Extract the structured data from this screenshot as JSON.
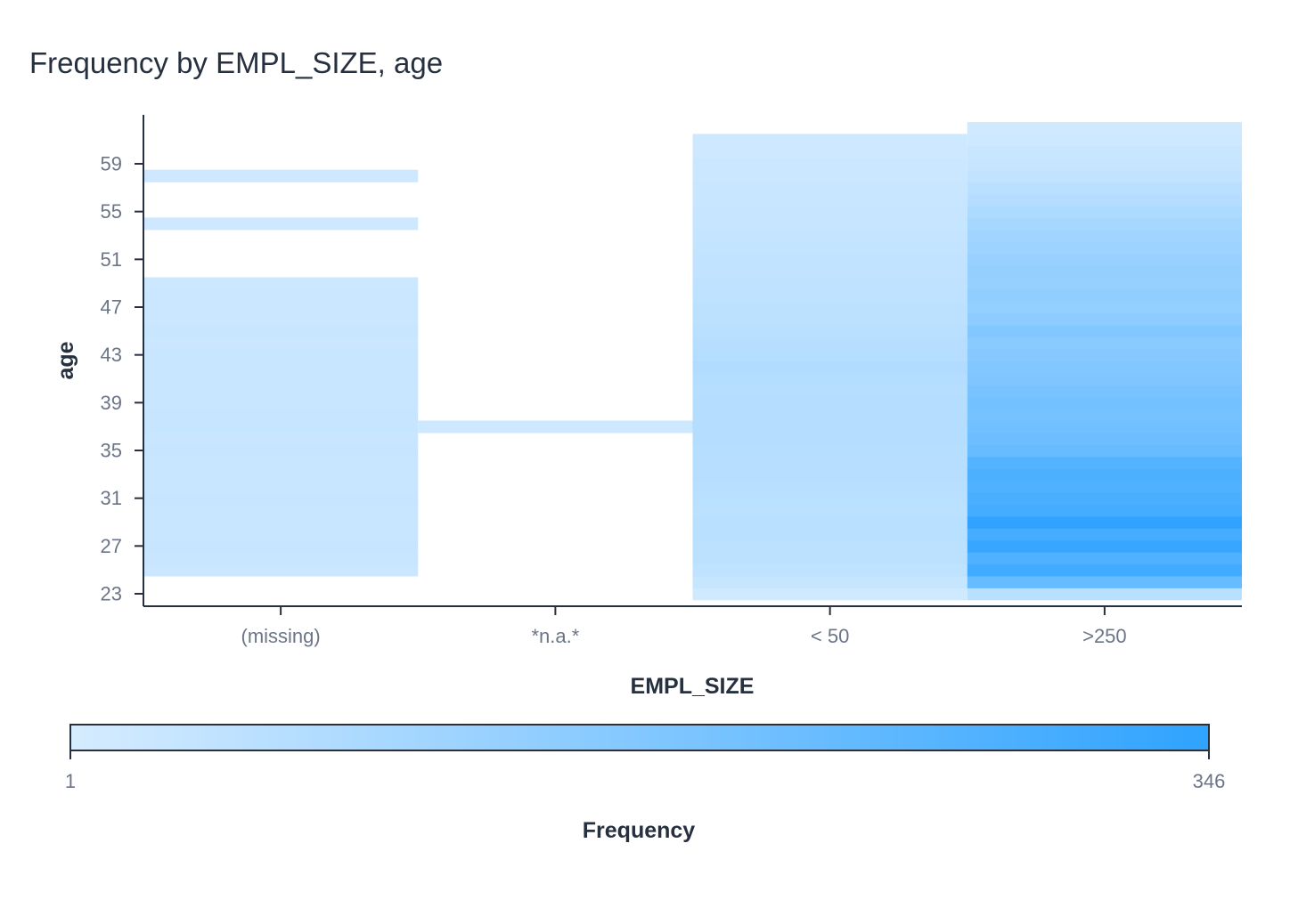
{
  "chart_data": {
    "type": "heatmap",
    "title": "Frequency by EMPL_SIZE, age",
    "xlabel": "EMPL_SIZE",
    "ylabel": "age",
    "categories": [
      "(missing)",
      "*n.a.*",
      "< 50",
      ">250"
    ],
    "y_ticks": [
      23,
      27,
      31,
      35,
      39,
      43,
      47,
      51,
      55,
      59
    ],
    "ylim": [
      22.5,
      63
    ],
    "colorbar": {
      "label": "Frequency",
      "min": 1,
      "max": 346,
      "min_label": "1",
      "max_label": "346",
      "color_min": "#d6ecff",
      "color_max": "#2fa3ff"
    },
    "cells": [
      {
        "x": "(missing)",
        "y": 58,
        "value": 20
      },
      {
        "x": "(missing)",
        "y": 54,
        "value": 20
      },
      {
        "x": "(missing)",
        "y": 25,
        "value": 25
      },
      {
        "x": "(missing)",
        "y": 26,
        "value": 30
      },
      {
        "x": "(missing)",
        "y": 27,
        "value": 32
      },
      {
        "x": "(missing)",
        "y": 28,
        "value": 30
      },
      {
        "x": "(missing)",
        "y": 29,
        "value": 28
      },
      {
        "x": "(missing)",
        "y": 30,
        "value": 30
      },
      {
        "x": "(missing)",
        "y": 31,
        "value": 32
      },
      {
        "x": "(missing)",
        "y": 32,
        "value": 30
      },
      {
        "x": "(missing)",
        "y": 33,
        "value": 28
      },
      {
        "x": "(missing)",
        "y": 34,
        "value": 30
      },
      {
        "x": "(missing)",
        "y": 35,
        "value": 32
      },
      {
        "x": "(missing)",
        "y": 36,
        "value": 30
      },
      {
        "x": "(missing)",
        "y": 37,
        "value": 35
      },
      {
        "x": "(missing)",
        "y": 38,
        "value": 32
      },
      {
        "x": "(missing)",
        "y": 39,
        "value": 30
      },
      {
        "x": "(missing)",
        "y": 40,
        "value": 28
      },
      {
        "x": "(missing)",
        "y": 41,
        "value": 30
      },
      {
        "x": "(missing)",
        "y": 42,
        "value": 28
      },
      {
        "x": "(missing)",
        "y": 43,
        "value": 30
      },
      {
        "x": "(missing)",
        "y": 44,
        "value": 26
      },
      {
        "x": "(missing)",
        "y": 45,
        "value": 28
      },
      {
        "x": "(missing)",
        "y": 46,
        "value": 26
      },
      {
        "x": "(missing)",
        "y": 47,
        "value": 24
      },
      {
        "x": "(missing)",
        "y": 48,
        "value": 24
      },
      {
        "x": "(missing)",
        "y": 49,
        "value": 22
      },
      {
        "x": "*n.a.*",
        "y": 37,
        "value": 18
      },
      {
        "x": "< 50",
        "y": 23,
        "value": 15
      },
      {
        "x": "< 50",
        "y": 24,
        "value": 35
      },
      {
        "x": "< 50",
        "y": 25,
        "value": 50
      },
      {
        "x": "< 50",
        "y": 26,
        "value": 55
      },
      {
        "x": "< 50",
        "y": 27,
        "value": 55
      },
      {
        "x": "< 50",
        "y": 28,
        "value": 60
      },
      {
        "x": "< 50",
        "y": 29,
        "value": 60
      },
      {
        "x": "< 50",
        "y": 30,
        "value": 55
      },
      {
        "x": "< 50",
        "y": 31,
        "value": 60
      },
      {
        "x": "< 50",
        "y": 32,
        "value": 62
      },
      {
        "x": "< 50",
        "y": 33,
        "value": 65
      },
      {
        "x": "< 50",
        "y": 34,
        "value": 65
      },
      {
        "x": "< 50",
        "y": 35,
        "value": 68
      },
      {
        "x": "< 50",
        "y": 36,
        "value": 70
      },
      {
        "x": "< 50",
        "y": 37,
        "value": 72
      },
      {
        "x": "< 50",
        "y": 38,
        "value": 70
      },
      {
        "x": "< 50",
        "y": 39,
        "value": 70
      },
      {
        "x": "< 50",
        "y": 40,
        "value": 68
      },
      {
        "x": "< 50",
        "y": 41,
        "value": 70
      },
      {
        "x": "< 50",
        "y": 42,
        "value": 75
      },
      {
        "x": "< 50",
        "y": 43,
        "value": 72
      },
      {
        "x": "< 50",
        "y": 44,
        "value": 65
      },
      {
        "x": "< 50",
        "y": 45,
        "value": 60
      },
      {
        "x": "< 50",
        "y": 46,
        "value": 55
      },
      {
        "x": "< 50",
        "y": 47,
        "value": 55
      },
      {
        "x": "< 50",
        "y": 48,
        "value": 50
      },
      {
        "x": "< 50",
        "y": 49,
        "value": 48
      },
      {
        "x": "< 50",
        "y": 50,
        "value": 45
      },
      {
        "x": "< 50",
        "y": 51,
        "value": 42
      },
      {
        "x": "< 50",
        "y": 52,
        "value": 40
      },
      {
        "x": "< 50",
        "y": 53,
        "value": 38
      },
      {
        "x": "< 50",
        "y": 54,
        "value": 35
      },
      {
        "x": "< 50",
        "y": 55,
        "value": 32
      },
      {
        "x": "< 50",
        "y": 56,
        "value": 30
      },
      {
        "x": "< 50",
        "y": 57,
        "value": 28
      },
      {
        "x": "< 50",
        "y": 58,
        "value": 26
      },
      {
        "x": "< 50",
        "y": 59,
        "value": 24
      },
      {
        "x": "< 50",
        "y": 60,
        "value": 20
      },
      {
        "x": "< 50",
        "y": 61,
        "value": 18
      },
      {
        "x": ">250",
        "y": 23,
        "value": 60
      },
      {
        "x": ">250",
        "y": 24,
        "value": 230
      },
      {
        "x": ">250",
        "y": 25,
        "value": 310
      },
      {
        "x": ">250",
        "y": 26,
        "value": 280
      },
      {
        "x": ">250",
        "y": 27,
        "value": 330
      },
      {
        "x": ">250",
        "y": 28,
        "value": 300
      },
      {
        "x": ">250",
        "y": 29,
        "value": 346
      },
      {
        "x": ">250",
        "y": 30,
        "value": 300
      },
      {
        "x": ">250",
        "y": 31,
        "value": 290
      },
      {
        "x": ">250",
        "y": 32,
        "value": 280
      },
      {
        "x": ">250",
        "y": 33,
        "value": 285
      },
      {
        "x": ">250",
        "y": 34,
        "value": 270
      },
      {
        "x": ">250",
        "y": 35,
        "value": 230
      },
      {
        "x": ">250",
        "y": 36,
        "value": 220
      },
      {
        "x": ">250",
        "y": 37,
        "value": 210
      },
      {
        "x": ">250",
        "y": 38,
        "value": 200
      },
      {
        "x": ">250",
        "y": 39,
        "value": 205
      },
      {
        "x": ">250",
        "y": 40,
        "value": 195
      },
      {
        "x": ">250",
        "y": 41,
        "value": 180
      },
      {
        "x": ">250",
        "y": 42,
        "value": 175
      },
      {
        "x": ">250",
        "y": 43,
        "value": 165
      },
      {
        "x": ">250",
        "y": 44,
        "value": 160
      },
      {
        "x": ">250",
        "y": 45,
        "value": 175
      },
      {
        "x": ">250",
        "y": 46,
        "value": 150
      },
      {
        "x": ">250",
        "y": 47,
        "value": 140
      },
      {
        "x": ">250",
        "y": 48,
        "value": 145
      },
      {
        "x": ">250",
        "y": 49,
        "value": 135
      },
      {
        "x": ">250",
        "y": 50,
        "value": 140
      },
      {
        "x": ">250",
        "y": 51,
        "value": 130
      },
      {
        "x": ">250",
        "y": 52,
        "value": 120
      },
      {
        "x": ">250",
        "y": 53,
        "value": 110
      },
      {
        "x": ">250",
        "y": 54,
        "value": 100
      },
      {
        "x": ">250",
        "y": 55,
        "value": 85
      },
      {
        "x": ">250",
        "y": 56,
        "value": 70
      },
      {
        "x": ">250",
        "y": 57,
        "value": 60
      },
      {
        "x": ">250",
        "y": 58,
        "value": 45
      },
      {
        "x": ">250",
        "y": 59,
        "value": 35
      },
      {
        "x": ">250",
        "y": 60,
        "value": 28
      },
      {
        "x": ">250",
        "y": 61,
        "value": 20
      },
      {
        "x": ">250",
        "y": 62,
        "value": 14
      }
    ]
  }
}
